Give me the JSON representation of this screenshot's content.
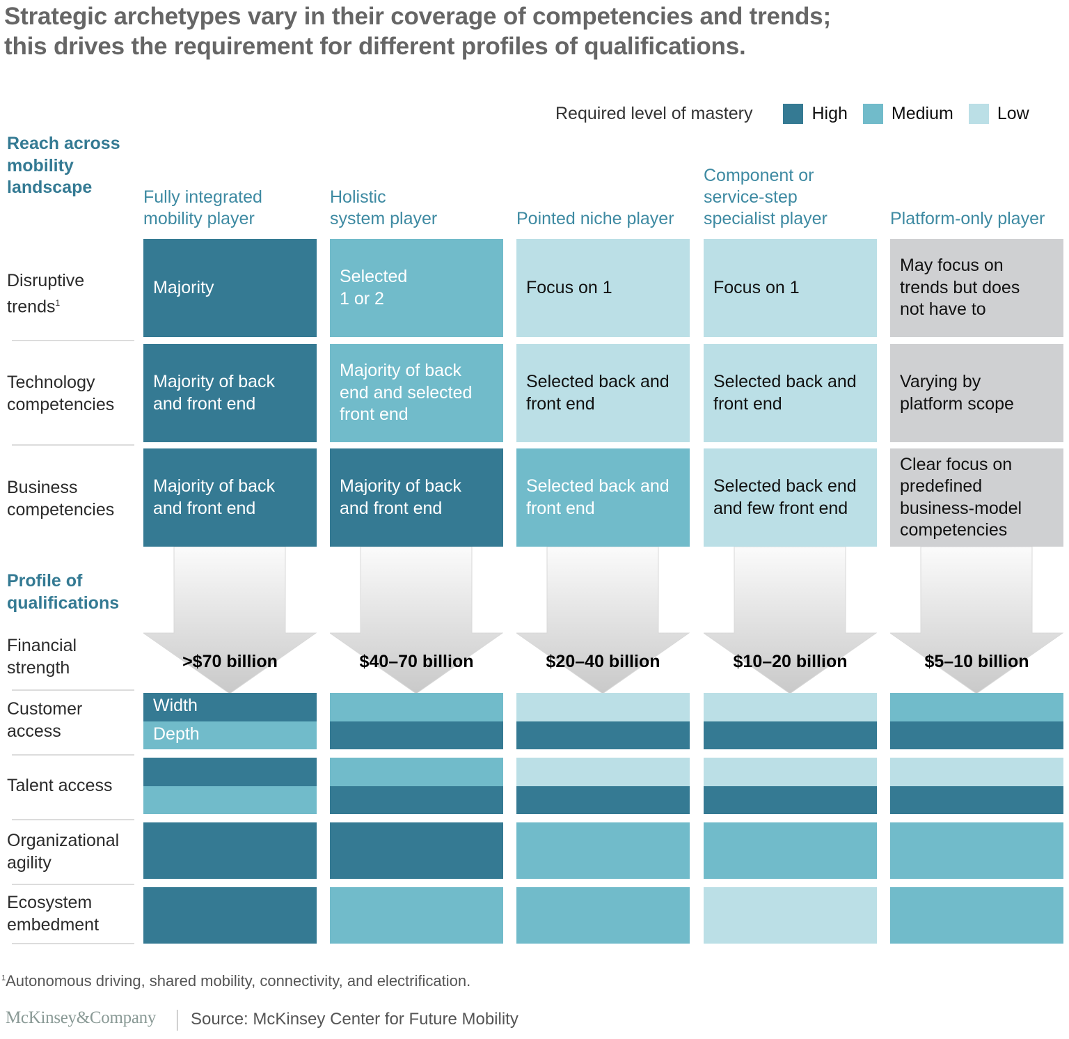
{
  "title": {
    "line1": "Strategic archetypes vary in their coverage of competencies and trends;",
    "line2": "this drives the requirement for different profiles of qualifications."
  },
  "legend": {
    "label": "Required level of mastery",
    "items": [
      {
        "key": "high",
        "label": "High",
        "color": "#357a93"
      },
      {
        "key": "medium",
        "label": "Medium",
        "color": "#71bbca"
      },
      {
        "key": "low",
        "label": "Low",
        "color": "#bbdfe6"
      }
    ]
  },
  "colors": {
    "high": "#357a93",
    "medium": "#71bbca",
    "low": "#bbdfe6",
    "na": "#cfd0d2"
  },
  "sections": {
    "reach": [
      "Reach across",
      "mobility",
      "landscape"
    ],
    "profile": [
      "Profile of",
      "qualifications"
    ]
  },
  "archetypes": [
    {
      "lines": [
        "Fully integrated",
        "mobility player"
      ]
    },
    {
      "lines": [
        "Holistic",
        "system player"
      ]
    },
    {
      "lines": [
        "Pointed niche player"
      ]
    },
    {
      "lines": [
        "Component or",
        "service-step",
        "specialist player"
      ]
    },
    {
      "lines": [
        "Platform-only player"
      ]
    }
  ],
  "reach_rows": [
    {
      "label": [
        "Disruptive",
        "trends"
      ],
      "footnote_mark": "1",
      "cells": [
        {
          "level": "high",
          "lines": [
            "Majority"
          ]
        },
        {
          "level": "medium",
          "lines": [
            "Selected",
            "1 or 2"
          ]
        },
        {
          "level": "low",
          "lines": [
            "Focus on 1"
          ]
        },
        {
          "level": "low",
          "lines": [
            "Focus on 1"
          ]
        },
        {
          "level": "na",
          "lines": [
            "May focus on",
            "trends but does",
            "not have to"
          ]
        }
      ]
    },
    {
      "label": [
        "Technology",
        "competencies"
      ],
      "cells": [
        {
          "level": "high",
          "lines": [
            "Majority of back",
            "and front end"
          ]
        },
        {
          "level": "medium",
          "lines": [
            "Majority of back",
            "end and selected",
            "front end"
          ]
        },
        {
          "level": "low",
          "lines": [
            "Selected back and",
            "front end"
          ]
        },
        {
          "level": "low",
          "lines": [
            "Selected back and",
            "front end"
          ]
        },
        {
          "level": "na",
          "lines": [
            "Varying by",
            "platform scope"
          ]
        }
      ]
    },
    {
      "label": [
        "Business",
        "competencies"
      ],
      "cells": [
        {
          "level": "high",
          "lines": [
            "Majority of back",
            "and front end"
          ]
        },
        {
          "level": "high",
          "lines": [
            "Majority of back",
            "and front end"
          ]
        },
        {
          "level": "medium",
          "lines": [
            "Selected back and",
            "front end"
          ]
        },
        {
          "level": "low",
          "lines": [
            "Selected back end",
            "and few front end"
          ]
        },
        {
          "level": "na",
          "lines": [
            "Clear focus on",
            "predefined",
            "business-model",
            "competencies"
          ]
        }
      ]
    }
  ],
  "financial": {
    "label": [
      "Financial",
      "strength"
    ],
    "values": [
      ">$70 billion",
      "$40–70 billion",
      "$20–40 billion",
      "$10–20 billion",
      "$5–10 billion"
    ]
  },
  "profile_rows": [
    {
      "label": [
        "Customer",
        "access"
      ],
      "split": true,
      "sublabels": [
        "Width",
        "Depth"
      ],
      "cells": [
        [
          "high",
          "medium"
        ],
        [
          "medium",
          "high"
        ],
        [
          "low",
          "high"
        ],
        [
          "low",
          "high"
        ],
        [
          "medium",
          "high"
        ]
      ]
    },
    {
      "label": [
        "Talent access"
      ],
      "split": true,
      "cells": [
        [
          "high",
          "medium"
        ],
        [
          "medium",
          "high"
        ],
        [
          "low",
          "high"
        ],
        [
          "low",
          "high"
        ],
        [
          "low",
          "high"
        ]
      ]
    },
    {
      "label": [
        "Organizational",
        "agility"
      ],
      "split": false,
      "cells": [
        "high",
        "high",
        "medium",
        "medium",
        "medium"
      ]
    },
    {
      "label": [
        "Ecosystem",
        "embedment"
      ],
      "split": false,
      "cells": [
        "high",
        "medium",
        "medium",
        "low",
        "medium"
      ]
    }
  ],
  "footnote": {
    "mark": "1",
    "text": "Autonomous driving, shared mobility, connectivity, and electrification."
  },
  "footer": {
    "brand": "McKinsey&Company",
    "source": "Source: McKinsey Center for Future Mobility"
  }
}
